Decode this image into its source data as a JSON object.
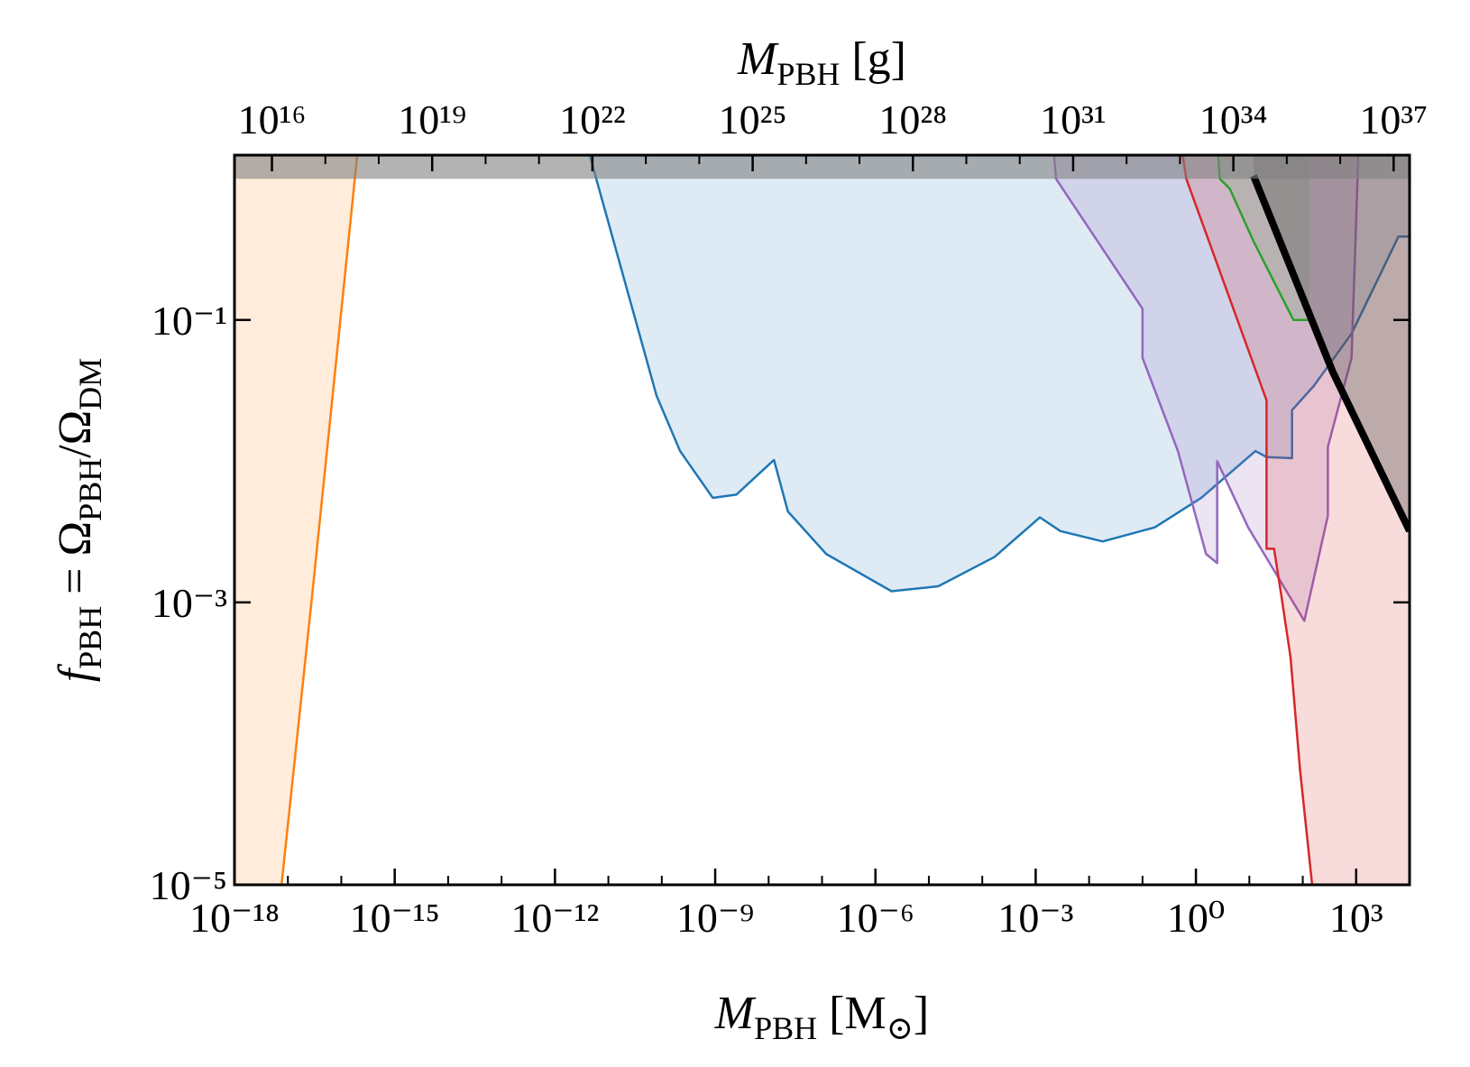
{
  "chart_data": {
    "type": "area",
    "xlabel_parts": [
      "M",
      "PBH",
      " [M",
      "⊙",
      "]"
    ],
    "x2label_parts": [
      "M",
      "PBH",
      " [g]"
    ],
    "ylabel_parts": [
      "f",
      "PBH",
      " = Ω",
      "PBH",
      "/Ω",
      "DM"
    ],
    "xscale": "log",
    "yscale": "log",
    "xlim": [
      1e-18,
      10000.0
    ],
    "x2lim": [
      1989000000000000.0,
      1.989e+37
    ],
    "ylim": [
      1e-05,
      1.47
    ],
    "xticks": [
      {
        "value": 1e-18,
        "label": "10⁻¹⁸"
      },
      {
        "value": 1e-15,
        "label": "10⁻¹⁵"
      },
      {
        "value": 1e-12,
        "label": "10⁻¹²"
      },
      {
        "value": 1e-09,
        "label": "10⁻⁹"
      },
      {
        "value": 1e-06,
        "label": "10⁻⁶"
      },
      {
        "value": 0.001,
        "label": "10⁻³"
      },
      {
        "value": 1,
        "label": "10⁰"
      },
      {
        "value": 1000,
        "label": "10³"
      }
    ],
    "xminor": [
      1e-17,
      1e-16,
      1e-14,
      1e-13,
      1e-11,
      1e-10,
      1e-08,
      1e-07,
      1e-05,
      0.0001,
      0.01,
      0.1,
      10,
      100
    ],
    "x2ticks": [
      {
        "value": 1e+16,
        "label": "10¹⁶"
      },
      {
        "value": 1e+19,
        "label": "10¹⁹"
      },
      {
        "value": 1e+22,
        "label": "10²²"
      },
      {
        "value": 1e+25,
        "label": "10²⁵"
      },
      {
        "value": 1e+28,
        "label": "10²⁸"
      },
      {
        "value": 1e+31,
        "label": "10³¹"
      },
      {
        "value": 1e+34,
        "label": "10³⁴"
      },
      {
        "value": 1e+37,
        "label": "10³⁷"
      }
    ],
    "x2minor": [
      1e+17,
      1e+18,
      1e+20,
      1e+21,
      1e+23,
      1e+24,
      1e+26,
      1e+27,
      1e+29,
      1e+30,
      1e+32,
      1e+33,
      1e+35,
      1e+36
    ],
    "yticks": [
      {
        "value": 1e-05,
        "label": "10⁻⁵"
      },
      {
        "value": 0.001,
        "label": "10⁻³"
      },
      {
        "value": 0.1,
        "label": "10⁻¹"
      }
    ],
    "series": [
      {
        "color": "#ff7f0e",
        "fill": "left",
        "fill_opacity": 0.15,
        "linewidth": 2.5,
        "x": [
          7.6e-18,
          2.9e-17,
          2e-16
        ],
        "values": [
          1e-05,
          0.0012,
          1.5
        ]
      },
      {
        "color": "#1f77b4",
        "fill": "top",
        "fill_opacity": 0.15,
        "linewidth": 2.5,
        "x": [
          4.4e-12,
          8e-11,
          2.2e-10,
          9e-10,
          2.5e-09,
          1.26e-08,
          2.3e-08,
          1.2e-07,
          2e-06,
          1.5e-05,
          0.00017,
          0.0012,
          0.0029,
          0.018,
          0.17,
          1.26,
          13,
          21,
          63,
          63,
          160,
          820,
          6200,
          10000.0
        ],
        "values": [
          1.5,
          0.029,
          0.0118,
          0.0055,
          0.0058,
          0.0102,
          0.0044,
          0.0022,
          0.0012,
          0.0013,
          0.0021,
          0.004,
          0.0032,
          0.0027,
          0.0034,
          0.0055,
          0.0118,
          0.0107,
          0.0105,
          0.023,
          0.034,
          0.08,
          0.39,
          0.39
        ]
      },
      {
        "color": "#9467bd",
        "fill": "top",
        "fill_opacity": 0.18,
        "linewidth": 2.5,
        "x": [
          0.0022,
          0.0024,
          0.1,
          0.1,
          0.46,
          1.55,
          2.5,
          2.5,
          9.5,
          107,
          295,
          295,
          820,
          1100
        ],
        "values": [
          1.5,
          1,
          0.12,
          0.054,
          0.0118,
          0.0022,
          0.0019,
          0.01,
          0.0034,
          0.00074,
          0.0041,
          0.0126,
          0.054,
          1.5
        ]
      },
      {
        "color": "#d62728",
        "fill": "right",
        "fill_opacity": 0.17,
        "linewidth": 2.5,
        "x": [
          0.56,
          0.66,
          21,
          21,
          29,
          40,
          59,
          89,
          150
        ],
        "values": [
          1.5,
          1,
          0.027,
          0.0024,
          0.0024,
          0.0011,
          0.00041,
          6.5e-05,
          1e-05
        ]
      },
      {
        "color": "#2ca02c",
        "fill": "top",
        "fill_opacity": 0.15,
        "linewidth": 2.5,
        "x": [
          2.6,
          2.8,
          4.3,
          12,
          67,
          133
        ],
        "values": [
          1.5,
          1,
          0.85,
          0.36,
          0.1,
          0.1
        ]
      },
      {
        "color": "#000000",
        "fill": "top",
        "fill_color": "#505050",
        "fill_opacity": 0.35,
        "linewidth": 8,
        "x": [
          12,
          363,
          10000.0
        ],
        "values": [
          1.05,
          0.043,
          0.0032
        ]
      },
      {
        "color": "#808080",
        "fill": "top",
        "fill_opacity": 0.6,
        "linewidth": 0,
        "x": [
          1e-18,
          10000.0
        ],
        "values": [
          1,
          1
        ]
      }
    ]
  }
}
